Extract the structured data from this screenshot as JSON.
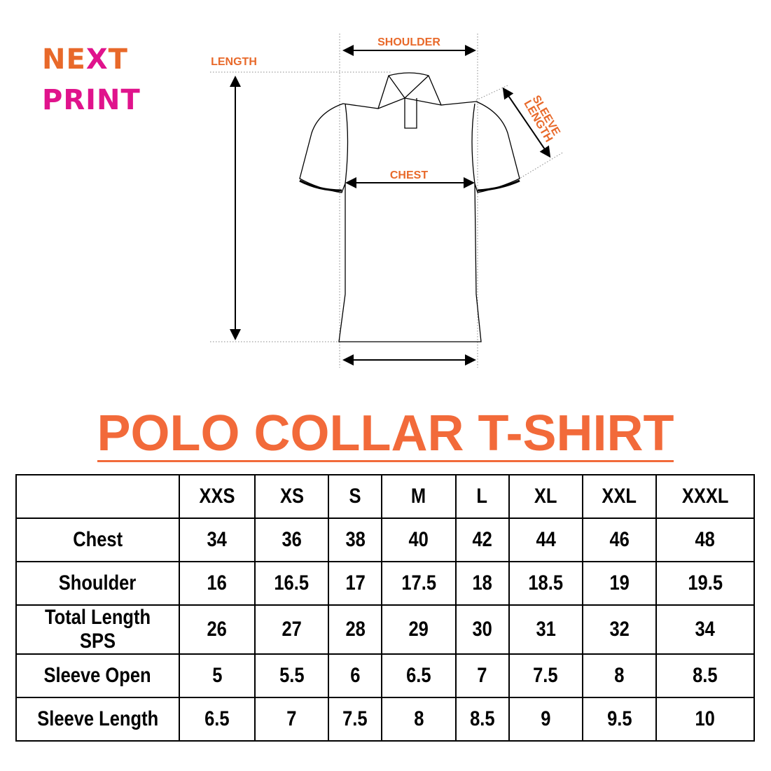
{
  "logo": {
    "line1_a": "NE",
    "line1_x": "X",
    "line1_b": "T",
    "line2": "PRINT"
  },
  "diagram": {
    "labels": {
      "shoulder": "SHOULDER",
      "length": "LENGTH",
      "chest": "CHEST",
      "sleeve_length_1": "SLEEVE",
      "sleeve_length_2": "LENGTH"
    }
  },
  "title": "POLO COLLAR T-SHIRT",
  "table": {
    "sizes": [
      "XXS",
      "XS",
      "S",
      "M",
      "L",
      "XL",
      "XXL",
      "XXXL"
    ],
    "rows": [
      {
        "label": "Chest",
        "values": [
          "34",
          "36",
          "38",
          "40",
          "42",
          "44",
          "46",
          "48"
        ]
      },
      {
        "label": "Shoulder",
        "values": [
          "16",
          "16.5",
          "17",
          "17.5",
          "18",
          "18.5",
          "19",
          "19.5"
        ]
      },
      {
        "label": "Total Length SPS",
        "values": [
          "26",
          "27",
          "28",
          "29",
          "30",
          "31",
          "32",
          "34"
        ]
      },
      {
        "label": "Sleeve Open",
        "values": [
          "5",
          "5.5",
          "6",
          "6.5",
          "7",
          "7.5",
          "8",
          "8.5"
        ]
      },
      {
        "label": "Sleeve Length",
        "values": [
          "6.5",
          "7",
          "7.5",
          "8",
          "8.5",
          "9",
          "9.5",
          "10"
        ]
      }
    ]
  },
  "colors": {
    "orange": "#e8692a",
    "pink": "#e0138c",
    "title": "#f26a3a"
  }
}
